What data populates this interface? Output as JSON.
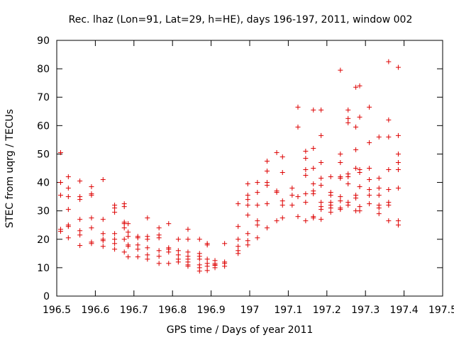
{
  "chart_data": {
    "type": "scatter",
    "title": "Rec. lhaz (Lon=91, Lat=29, h=HE), days 196-197, 2011, window 002",
    "xlabel": "GPS time / Days of year 2011",
    "ylabel": "STEC from uqrg / TECUs",
    "xlim": [
      196.5,
      197.5
    ],
    "ylim": [
      0,
      90
    ],
    "xticks": [
      196.5,
      196.6,
      196.7,
      196.8,
      196.9,
      197,
      197.1,
      197.2,
      197.3,
      197.4,
      197.5
    ],
    "xtick_labels": [
      "196.5",
      "196.6",
      "196.7",
      "196.8",
      "196.9",
      "197",
      "197.1",
      "197.2",
      "197.3",
      "197.4",
      "197.5"
    ],
    "yticks": [
      0,
      10,
      20,
      30,
      40,
      50,
      60,
      70,
      80,
      90
    ],
    "ytick_labels": [
      "0",
      "10",
      "20",
      "30",
      "40",
      "50",
      "60",
      "70",
      "80",
      "90"
    ],
    "grid": false,
    "marker": "plus",
    "color": "#dd0000",
    "series": [
      {
        "name": "STEC",
        "points": [
          [
            196.51,
            50.5
          ],
          [
            196.51,
            40
          ],
          [
            196.51,
            35.5
          ],
          [
            196.51,
            23.5
          ],
          [
            196.51,
            22.8
          ],
          [
            196.53,
            42
          ],
          [
            196.53,
            38
          ],
          [
            196.53,
            35
          ],
          [
            196.53,
            30.5
          ],
          [
            196.53,
            25
          ],
          [
            196.53,
            24.5
          ],
          [
            196.53,
            20.5
          ],
          [
            196.56,
            40.5
          ],
          [
            196.56,
            35
          ],
          [
            196.56,
            34
          ],
          [
            196.56,
            27
          ],
          [
            196.56,
            23
          ],
          [
            196.56,
            21.5
          ],
          [
            196.56,
            17.8
          ],
          [
            196.59,
            38.5
          ],
          [
            196.59,
            36
          ],
          [
            196.59,
            35.5
          ],
          [
            196.59,
            27.5
          ],
          [
            196.59,
            24
          ],
          [
            196.59,
            19
          ],
          [
            196.59,
            18.5
          ],
          [
            196.62,
            41
          ],
          [
            196.62,
            27
          ],
          [
            196.62,
            22
          ],
          [
            196.62,
            20
          ],
          [
            196.62,
            19.5
          ],
          [
            196.62,
            17.5
          ],
          [
            196.65,
            32
          ],
          [
            196.65,
            31
          ],
          [
            196.65,
            29.5
          ],
          [
            196.65,
            22
          ],
          [
            196.65,
            20
          ],
          [
            196.65,
            18.5
          ],
          [
            196.65,
            16.5
          ],
          [
            196.675,
            32.5
          ],
          [
            196.675,
            31.5
          ],
          [
            196.675,
            26
          ],
          [
            196.675,
            25.5
          ],
          [
            196.675,
            24
          ],
          [
            196.675,
            20
          ],
          [
            196.675,
            15.5
          ],
          [
            196.685,
            25.5
          ],
          [
            196.685,
            22.5
          ],
          [
            196.685,
            21
          ],
          [
            196.685,
            18
          ],
          [
            196.685,
            17.5
          ],
          [
            196.685,
            13.8
          ],
          [
            196.71,
            21
          ],
          [
            196.71,
            20.5
          ],
          [
            196.71,
            18
          ],
          [
            196.71,
            16.5
          ],
          [
            196.71,
            13.8
          ],
          [
            196.735,
            27.5
          ],
          [
            196.735,
            21
          ],
          [
            196.735,
            20
          ],
          [
            196.735,
            17
          ],
          [
            196.735,
            14.5
          ],
          [
            196.735,
            13
          ],
          [
            196.765,
            24
          ],
          [
            196.765,
            21.5
          ],
          [
            196.765,
            20.5
          ],
          [
            196.765,
            16
          ],
          [
            196.765,
            14
          ],
          [
            196.765,
            11.5
          ],
          [
            196.79,
            25.5
          ],
          [
            196.79,
            17
          ],
          [
            196.79,
            16.5
          ],
          [
            196.79,
            15.5
          ],
          [
            196.79,
            11.5
          ],
          [
            196.815,
            20
          ],
          [
            196.815,
            16
          ],
          [
            196.815,
            14.5
          ],
          [
            196.815,
            13
          ],
          [
            196.815,
            12
          ],
          [
            196.84,
            23.5
          ],
          [
            196.84,
            20
          ],
          [
            196.84,
            15.5
          ],
          [
            196.84,
            14
          ],
          [
            196.84,
            13
          ],
          [
            196.84,
            12
          ],
          [
            196.84,
            11
          ],
          [
            196.84,
            10.5
          ],
          [
            196.87,
            20
          ],
          [
            196.87,
            15
          ],
          [
            196.87,
            14
          ],
          [
            196.87,
            13
          ],
          [
            196.87,
            11
          ],
          [
            196.87,
            10
          ],
          [
            196.87,
            8.8
          ],
          [
            196.89,
            18.5
          ],
          [
            196.89,
            18
          ],
          [
            196.89,
            13
          ],
          [
            196.89,
            11.5
          ],
          [
            196.89,
            10.5
          ],
          [
            196.89,
            9
          ],
          [
            196.91,
            12.5
          ],
          [
            196.91,
            11.5
          ],
          [
            196.91,
            11
          ],
          [
            196.91,
            10.8
          ],
          [
            196.91,
            10
          ],
          [
            196.935,
            18.5
          ],
          [
            196.935,
            12
          ],
          [
            196.935,
            11.5
          ],
          [
            196.935,
            10.5
          ],
          [
            196.97,
            32.5
          ],
          [
            196.97,
            24.5
          ],
          [
            196.97,
            20
          ],
          [
            196.97,
            17.5
          ],
          [
            196.97,
            16
          ],
          [
            196.97,
            15
          ],
          [
            196.995,
            39.5
          ],
          [
            196.995,
            35.5
          ],
          [
            196.995,
            34
          ],
          [
            196.995,
            32
          ],
          [
            196.995,
            28.5
          ],
          [
            196.995,
            22
          ],
          [
            196.995,
            19.5
          ],
          [
            196.995,
            18
          ],
          [
            197.02,
            40
          ],
          [
            197.02,
            36.5
          ],
          [
            197.02,
            32
          ],
          [
            197.02,
            26.5
          ],
          [
            197.02,
            25
          ],
          [
            197.02,
            20.5
          ],
          [
            197.045,
            47.5
          ],
          [
            197.045,
            44
          ],
          [
            197.045,
            40
          ],
          [
            197.045,
            39
          ],
          [
            197.045,
            32.5
          ],
          [
            197.045,
            24
          ],
          [
            197.07,
            50.5
          ],
          [
            197.07,
            37
          ],
          [
            197.07,
            36.5
          ],
          [
            197.07,
            26.5
          ],
          [
            197.085,
            49
          ],
          [
            197.085,
            43.5
          ],
          [
            197.085,
            33.5
          ],
          [
            197.085,
            32
          ],
          [
            197.085,
            27.5
          ],
          [
            197.11,
            38
          ],
          [
            197.11,
            35.5
          ],
          [
            197.11,
            32
          ],
          [
            197.125,
            66.5
          ],
          [
            197.125,
            59.5
          ],
          [
            197.125,
            35
          ],
          [
            197.125,
            28
          ],
          [
            197.145,
            51
          ],
          [
            197.145,
            48.5
          ],
          [
            197.145,
            44.5
          ],
          [
            197.145,
            42.5
          ],
          [
            197.145,
            36
          ],
          [
            197.145,
            33
          ],
          [
            197.145,
            26.5
          ],
          [
            197.165,
            65.5
          ],
          [
            197.165,
            52
          ],
          [
            197.165,
            45
          ],
          [
            197.165,
            39.5
          ],
          [
            197.165,
            37
          ],
          [
            197.165,
            36
          ],
          [
            197.165,
            28
          ],
          [
            197.165,
            27.5
          ],
          [
            197.185,
            65.5
          ],
          [
            197.185,
            56.5
          ],
          [
            197.185,
            47
          ],
          [
            197.185,
            41.5
          ],
          [
            197.185,
            39
          ],
          [
            197.185,
            33
          ],
          [
            197.185,
            31.5
          ],
          [
            197.185,
            30.5
          ],
          [
            197.185,
            27
          ],
          [
            197.21,
            42
          ],
          [
            197.21,
            36.5
          ],
          [
            197.21,
            35.5
          ],
          [
            197.21,
            33
          ],
          [
            197.21,
            32
          ],
          [
            197.21,
            31
          ],
          [
            197.21,
            29.5
          ],
          [
            197.235,
            79.5
          ],
          [
            197.235,
            50
          ],
          [
            197.235,
            47
          ],
          [
            197.235,
            42
          ],
          [
            197.235,
            41.5
          ],
          [
            197.235,
            35
          ],
          [
            197.235,
            33.5
          ],
          [
            197.235,
            31
          ],
          [
            197.235,
            30.5
          ],
          [
            197.255,
            65.5
          ],
          [
            197.255,
            62.5
          ],
          [
            197.255,
            61
          ],
          [
            197.255,
            43
          ],
          [
            197.255,
            42
          ],
          [
            197.255,
            39.5
          ],
          [
            197.255,
            33
          ],
          [
            197.255,
            32
          ],
          [
            197.275,
            73.5
          ],
          [
            197.275,
            59.5
          ],
          [
            197.275,
            51.5
          ],
          [
            197.275,
            45
          ],
          [
            197.275,
            35.5
          ],
          [
            197.275,
            34.5
          ],
          [
            197.275,
            30
          ],
          [
            197.285,
            74
          ],
          [
            197.285,
            63
          ],
          [
            197.285,
            44.5
          ],
          [
            197.285,
            43.5
          ],
          [
            197.285,
            38.5
          ],
          [
            197.285,
            31.5
          ],
          [
            197.285,
            30
          ],
          [
            197.31,
            66.5
          ],
          [
            197.31,
            54
          ],
          [
            197.31,
            45
          ],
          [
            197.31,
            41
          ],
          [
            197.31,
            37.5
          ],
          [
            197.31,
            35.5
          ],
          [
            197.31,
            32.5
          ],
          [
            197.335,
            56
          ],
          [
            197.335,
            41.5
          ],
          [
            197.335,
            38
          ],
          [
            197.335,
            35.5
          ],
          [
            197.335,
            32
          ],
          [
            197.335,
            31
          ],
          [
            197.335,
            29
          ],
          [
            197.36,
            82.5
          ],
          [
            197.36,
            62
          ],
          [
            197.36,
            56
          ],
          [
            197.36,
            44.5
          ],
          [
            197.36,
            37.5
          ],
          [
            197.36,
            33
          ],
          [
            197.36,
            32
          ],
          [
            197.36,
            26.5
          ],
          [
            197.385,
            80.5
          ],
          [
            197.385,
            56.5
          ],
          [
            197.385,
            50
          ],
          [
            197.385,
            47
          ],
          [
            197.385,
            44.5
          ],
          [
            197.385,
            38
          ],
          [
            197.385,
            26.5
          ],
          [
            197.385,
            25
          ]
        ]
      }
    ]
  }
}
